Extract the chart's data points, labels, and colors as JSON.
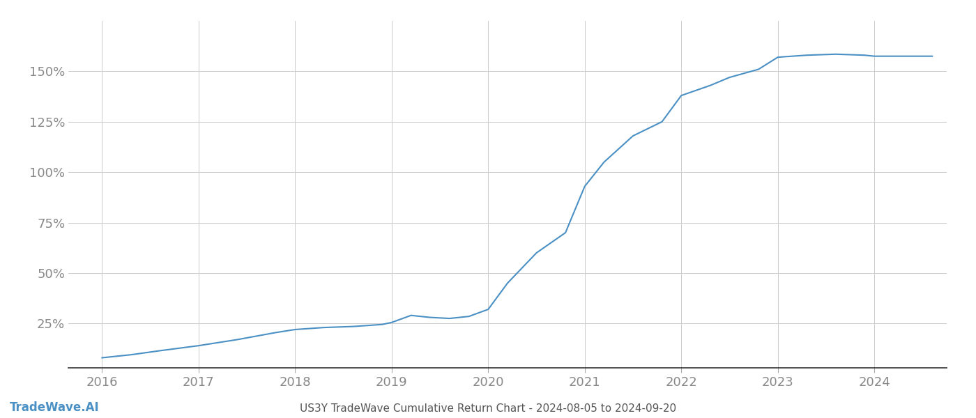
{
  "title": "US3Y TradeWave Cumulative Return Chart - 2024-08-05 to 2024-09-20",
  "watermark": "TradeWave.AI",
  "line_color": "#4a90c4",
  "background_color": "#ffffff",
  "grid_color": "#cccccc",
  "x_values": [
    2016.0,
    2016.3,
    2016.6,
    2017.0,
    2017.4,
    2017.8,
    2018.0,
    2018.3,
    2018.6,
    2018.9,
    2019.0,
    2019.2,
    2019.4,
    2019.6,
    2019.8,
    2020.0,
    2020.2,
    2020.5,
    2020.8,
    2021.0,
    2021.2,
    2021.5,
    2021.8,
    2022.0,
    2022.3,
    2022.5,
    2022.8,
    2023.0,
    2023.3,
    2023.6,
    2023.9,
    2024.0,
    2024.3,
    2024.6
  ],
  "y_values": [
    8.0,
    9.5,
    11.5,
    14.0,
    17.0,
    20.5,
    22.0,
    23.0,
    23.5,
    24.5,
    25.5,
    29.0,
    28.0,
    27.5,
    28.5,
    32.0,
    45.0,
    60.0,
    70.0,
    93.0,
    105.0,
    118.0,
    125.0,
    138.0,
    143.0,
    147.0,
    151.0,
    157.0,
    158.0,
    158.5,
    158.0,
    157.5,
    157.5,
    157.5
  ],
  "xlim": [
    2015.65,
    2024.75
  ],
  "ylim": [
    3,
    175
  ],
  "yticks": [
    25,
    50,
    75,
    100,
    125,
    150
  ],
  "ytick_labels": [
    "25%",
    "50%",
    "75%",
    "100%",
    "125%",
    "150%"
  ],
  "xticks": [
    2016,
    2017,
    2018,
    2019,
    2020,
    2021,
    2022,
    2023,
    2024
  ],
  "xtick_labels": [
    "2016",
    "2017",
    "2018",
    "2019",
    "2020",
    "2021",
    "2022",
    "2023",
    "2024"
  ],
  "line_width": 1.5,
  "title_fontsize": 11,
  "tick_fontsize": 13,
  "watermark_fontsize": 12,
  "title_color": "#555555",
  "tick_color": "#888888",
  "watermark_color": "#4a90c4",
  "spine_color": "#333333"
}
